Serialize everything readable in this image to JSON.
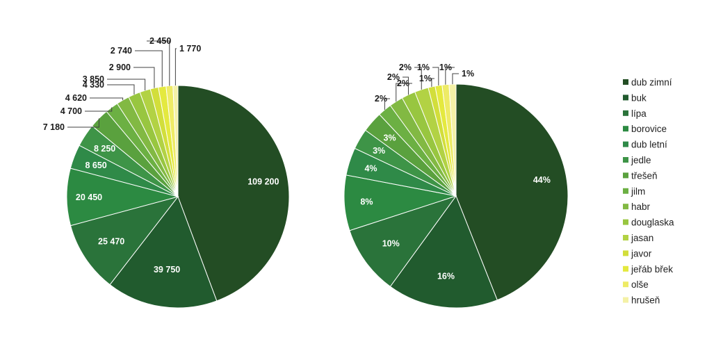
{
  "chart_data": [
    {
      "type": "pie",
      "categories": [
        "dub zimní",
        "buk",
        "lípa",
        "borovice",
        "dub letní",
        "jedle",
        "třešeň",
        "jilm",
        "habr",
        "douglaska",
        "jasan",
        "javor",
        "jeřáb břek",
        "olše",
        "hrušeň"
      ],
      "values": [
        109200,
        39750,
        25470,
        20450,
        8650,
        8250,
        7180,
        4700,
        4620,
        4330,
        3850,
        2900,
        2740,
        2450,
        1770
      ],
      "labels": [
        "109 200",
        "39 750",
        "25 470",
        "20 450",
        "8 650",
        "8 250",
        "7 180",
        "4 700",
        "4 620",
        "4 330",
        "3 850",
        "2 900",
        "2 740",
        "2 450",
        "1 770"
      ],
      "legend": "right"
    },
    {
      "type": "pie",
      "categories": [
        "dub zimní",
        "buk",
        "lípa",
        "borovice",
        "dub letní",
        "jedle",
        "třešeň",
        "jilm",
        "habr",
        "douglaska",
        "jasan",
        "javor",
        "jeřáb břek",
        "olše",
        "hrušeň"
      ],
      "values": [
        44,
        16,
        10,
        8,
        4,
        3,
        3,
        2,
        2,
        2,
        2,
        1,
        1,
        1,
        1
      ],
      "labels": [
        "44%",
        "16%",
        "10%",
        "8%",
        "4%",
        "3%",
        "3%",
        "2%",
        "2%",
        "2%",
        "2%",
        "1%",
        "1%",
        "1%",
        "1%"
      ],
      "legend": "right"
    }
  ],
  "colors": [
    "#234d24",
    "#215b2e",
    "#2a733a",
    "#2c8a42",
    "#2f8a48",
    "#3e9447",
    "#5aa13e",
    "#6cb043",
    "#82b943",
    "#98c640",
    "#b2d244",
    "#d2de3b",
    "#e4e93f",
    "#eeeb66",
    "#f4f1a6"
  ],
  "legend": {
    "items": [
      "dub zimní",
      "buk",
      "lípa",
      "borovice",
      "dub letní",
      "jedle",
      "třešeň",
      "jilm",
      "habr",
      "douglaska",
      "jasan",
      "javor",
      "jeřáb břek",
      "olše",
      "hrušeň"
    ]
  }
}
